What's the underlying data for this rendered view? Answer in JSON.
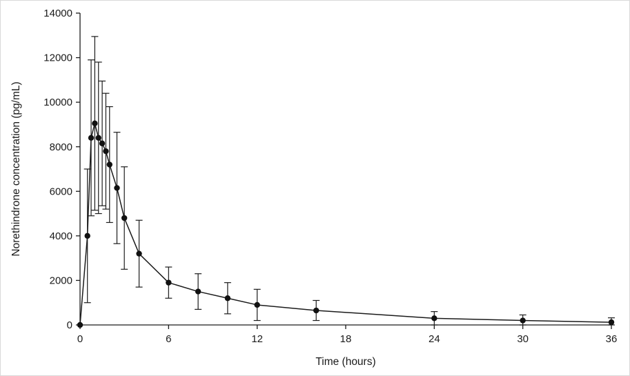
{
  "figure": {
    "xlabel": "Time (hours)",
    "ylabel": "Norethindrone concentration (pg/mL)"
  },
  "chart_data": {
    "type": "line",
    "title": "",
    "xlabel": "Time (hours)",
    "ylabel": "Norethindrone concentration (pg/mL)",
    "xlim": [
      0,
      36
    ],
    "ylim": [
      0,
      14000
    ],
    "xticks": [
      0,
      6,
      12,
      18,
      24,
      30,
      36
    ],
    "yticks": [
      0,
      2000,
      4000,
      6000,
      8000,
      10000,
      12000,
      14000
    ],
    "grid": false,
    "legend": "none",
    "marker": "filled-circle",
    "line_color": "#1a1a1a",
    "error_bars": true,
    "series": [
      {
        "name": "Norethindrone concentration",
        "x": [
          0,
          0.5,
          0.75,
          1,
          1.25,
          1.5,
          1.75,
          2,
          2.5,
          3,
          4,
          6,
          8,
          10,
          12,
          16,
          24,
          30,
          36
        ],
        "y": [
          0,
          4000,
          8400,
          9050,
          8400,
          8150,
          7800,
          7200,
          6150,
          4800,
          3200,
          1900,
          1500,
          1200,
          900,
          650,
          300,
          200,
          120
        ],
        "error": [
          0,
          3000,
          3500,
          3900,
          3400,
          2800,
          2600,
          2600,
          2500,
          2300,
          1500,
          700,
          800,
          700,
          700,
          450,
          300,
          250,
          200
        ]
      }
    ]
  }
}
